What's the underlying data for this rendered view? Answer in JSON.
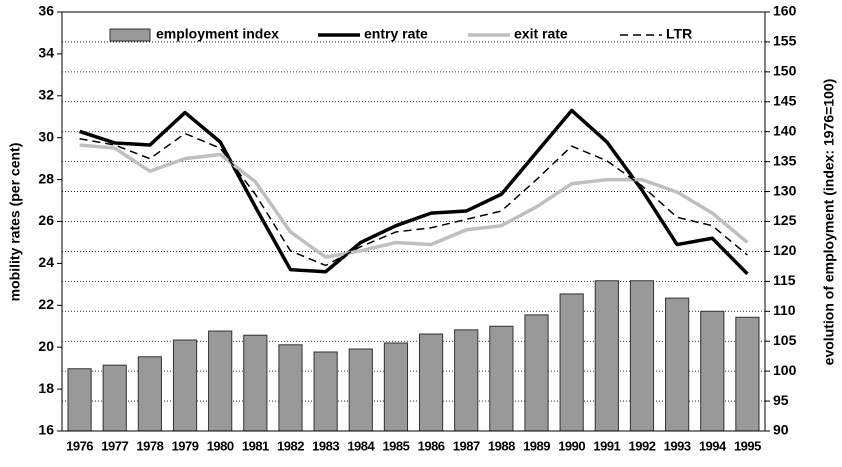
{
  "chart_data": {
    "type": "combo",
    "categories": [
      "1976",
      "1977",
      "1978",
      "1979",
      "1980",
      "1981",
      "1982",
      "1983",
      "1984",
      "1985",
      "1986",
      "1987",
      "1988",
      "1989",
      "1990",
      "1991",
      "1992",
      "1993",
      "1994",
      "1995"
    ],
    "series": [
      {
        "name": "employment index",
        "type": "bar",
        "axis": "y2",
        "color": "#999999",
        "values": [
          100.4,
          101.0,
          102.4,
          105.2,
          106.7,
          106.0,
          104.4,
          103.2,
          103.7,
          104.7,
          106.2,
          106.9,
          107.5,
          109.4,
          112.9,
          115.1,
          115.1,
          112.2,
          110.0,
          109.0
        ]
      },
      {
        "name": "entry rate",
        "type": "line",
        "color": "#000000",
        "width": 3.5,
        "values": [
          30.3,
          29.75,
          29.65,
          31.2,
          29.8,
          26.7,
          23.7,
          23.6,
          25.0,
          25.8,
          26.4,
          26.5,
          27.3,
          29.3,
          31.3,
          29.8,
          27.5,
          24.9,
          25.2,
          23.5
        ]
      },
      {
        "name": "exit rate",
        "type": "line",
        "color": "#bfbfbf",
        "width": 3.5,
        "values": [
          29.65,
          29.5,
          28.4,
          29.0,
          29.2,
          27.9,
          25.5,
          24.3,
          24.6,
          25.0,
          24.9,
          25.6,
          25.8,
          26.7,
          27.8,
          28.0,
          28.0,
          27.4,
          26.4,
          25.0
        ]
      },
      {
        "name": "LTR",
        "type": "line",
        "color": "#000000",
        "width": 1.5,
        "dashed": true,
        "values": [
          29.95,
          29.65,
          29.0,
          30.2,
          29.5,
          27.3,
          24.6,
          23.9,
          24.8,
          25.5,
          25.7,
          26.1,
          26.5,
          28.0,
          29.6,
          28.9,
          27.7,
          26.2,
          25.8,
          24.4
        ]
      }
    ],
    "ylabel": "mobility rates (per cent)",
    "y2label": "evolution of employment (index: 1976=100)",
    "ylim": [
      16,
      36
    ],
    "yticks": [
      16,
      18,
      20,
      22,
      24,
      26,
      28,
      30,
      32,
      34,
      36
    ],
    "y2lim": [
      90,
      160
    ],
    "y2ticks": [
      90,
      95,
      100,
      105,
      110,
      115,
      120,
      125,
      130,
      135,
      140,
      145,
      150,
      155,
      160
    ],
    "grid": "y2",
    "legend": "top"
  }
}
